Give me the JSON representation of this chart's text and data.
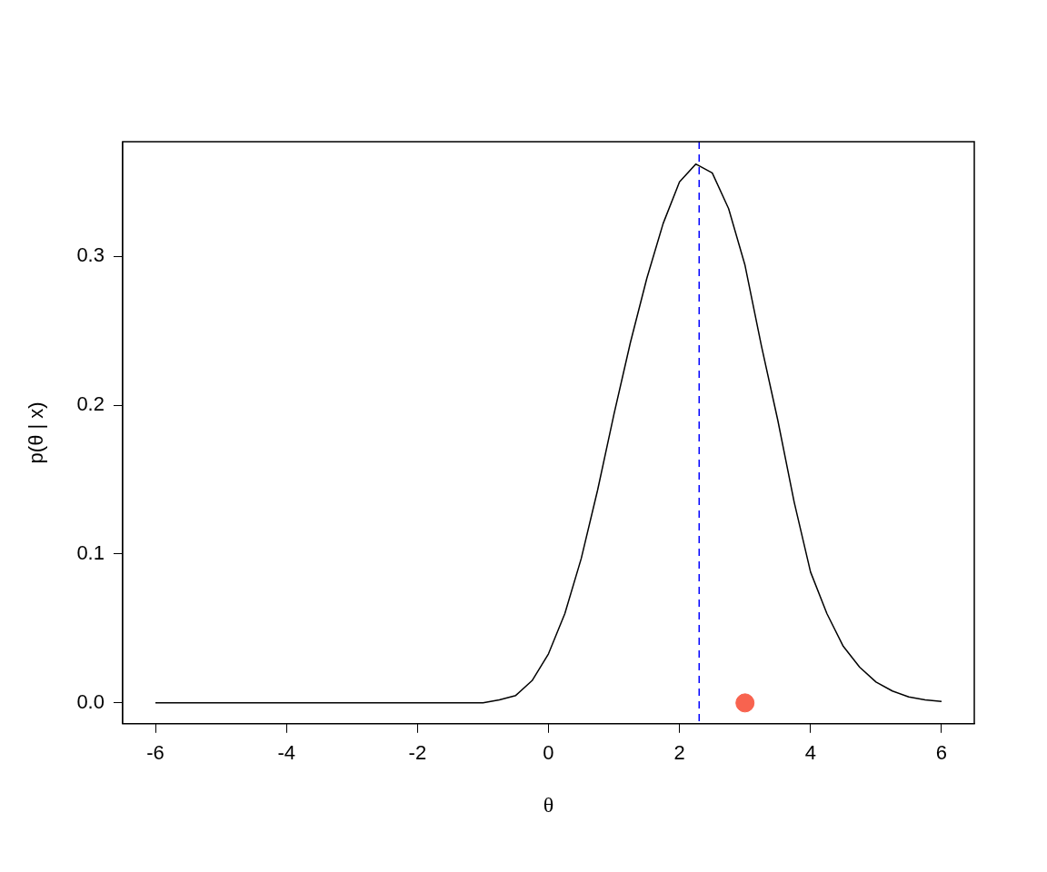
{
  "chart_data": {
    "type": "line",
    "xlabel": "θ",
    "ylabel": "p(θ | x)",
    "xlim": [
      -6.5,
      6.5
    ],
    "xticks": [
      -6,
      -4,
      -2,
      0,
      2,
      4,
      6
    ],
    "ylim": [
      -0.014,
      0.377
    ],
    "yticks": [
      {
        "value": 0,
        "label": "0.0"
      },
      0.1,
      0.2,
      0.3
    ],
    "grid": false,
    "legend": false,
    "series": [
      {
        "color": "#000000",
        "marker": "none",
        "line_style": "solid",
        "x": [
          -6,
          -1,
          -0.75,
          -0.5,
          -0.25,
          0,
          0.25,
          0.5,
          0.75,
          1,
          1.25,
          1.5,
          1.75,
          2,
          2.25,
          2.5,
          2.75,
          3,
          3.25,
          3.5,
          3.75,
          4,
          4.25,
          4.5,
          4.75,
          5,
          5.25,
          5.5,
          5.75,
          6
        ],
        "values": [
          0,
          0,
          0.002,
          0.005,
          0.015,
          0.033,
          0.06,
          0.097,
          0.143,
          0.194,
          0.242,
          0.285,
          0.322,
          0.35,
          0.362,
          0.356,
          0.332,
          0.294,
          0.24,
          0.19,
          0.135,
          0.088,
          0.06,
          0.038,
          0.024,
          0.014,
          0.008,
          0.004,
          0.002,
          0.001
        ]
      },
      {
        "type": "scatter",
        "color": "#f8634f",
        "marker": "circle",
        "x": [
          3
        ],
        "values": [
          0
        ]
      }
    ],
    "ref_lines": [
      {
        "axis": "x",
        "value": 2.3,
        "color": "#0000ff",
        "line_style": "dashed"
      }
    ]
  }
}
